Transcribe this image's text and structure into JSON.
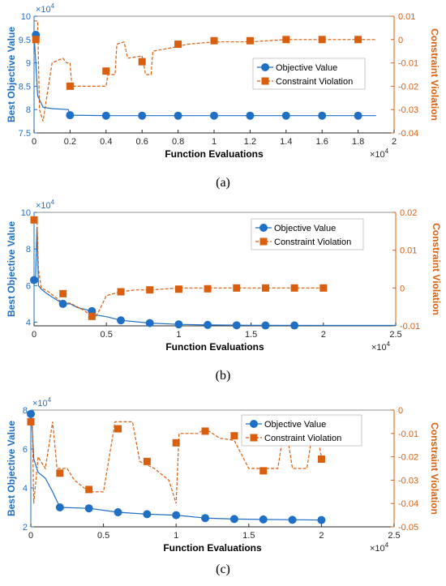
{
  "colors": {
    "objective": "#1f6fc5",
    "constraint": "#d95f0e",
    "axis": "#262626",
    "grid": "#e0e0e0"
  },
  "legend": {
    "objective": "Objective Value",
    "constraint": "Constraint Violation"
  },
  "chart_data": [
    {
      "type": "line",
      "panel_label": "(a)",
      "xlabel": "Function Evaluations",
      "ylabel_left": "Best Objective Value",
      "ylabel_right": "Constraint Violation",
      "x_exponent": "×10^4",
      "y_left_exponent": "×10^4",
      "xlim": [
        0,
        2
      ],
      "xticks": [
        "0",
        "0.2",
        "0.4",
        "0.6",
        "0.8",
        "1",
        "1.2",
        "1.4",
        "1.6",
        "1.8",
        "2"
      ],
      "ylim_left": [
        7.5,
        10
      ],
      "yticks_left": [
        "7.5",
        "8",
        "8.5",
        "9",
        "9.5",
        "10"
      ],
      "ylim_right": [
        -0.04,
        0.01
      ],
      "yticks_right": [
        "-0.04",
        "-0.03",
        "-0.02",
        "-0.01",
        "0",
        "0.01"
      ],
      "objective_line": [
        [
          0,
          9.6
        ],
        [
          0.01,
          9.0
        ],
        [
          0.02,
          8.3
        ],
        [
          0.05,
          8.05
        ],
        [
          0.1,
          8.02
        ],
        [
          0.19,
          8.0
        ],
        [
          0.2,
          7.88
        ],
        [
          0.4,
          7.87
        ],
        [
          1.9,
          7.87
        ]
      ],
      "objective_markers": [
        [
          0.01,
          9.6
        ],
        [
          0.2,
          7.88
        ],
        [
          0.4,
          7.87
        ],
        [
          0.6,
          7.87
        ],
        [
          0.8,
          7.87
        ],
        [
          1.0,
          7.87
        ],
        [
          1.2,
          7.87
        ],
        [
          1.4,
          7.87
        ],
        [
          1.6,
          7.87
        ],
        [
          1.8,
          7.87
        ]
      ],
      "constraint_line": [
        [
          0,
          0.008
        ],
        [
          0.02,
          0.008
        ],
        [
          0.03,
          -0.03
        ],
        [
          0.05,
          -0.035
        ],
        [
          0.07,
          -0.025
        ],
        [
          0.1,
          -0.01
        ],
        [
          0.16,
          -0.008
        ],
        [
          0.18,
          -0.01
        ],
        [
          0.2,
          -0.01
        ],
        [
          0.21,
          -0.02
        ],
        [
          0.4,
          -0.02
        ],
        [
          0.41,
          -0.015
        ],
        [
          0.45,
          -0.015
        ],
        [
          0.46,
          -0.002
        ],
        [
          0.5,
          -0.001
        ],
        [
          0.52,
          -0.008
        ],
        [
          0.6,
          -0.007
        ],
        [
          0.62,
          -0.015
        ],
        [
          0.65,
          -0.015
        ],
        [
          0.66,
          -0.005
        ],
        [
          0.8,
          -0.003
        ],
        [
          0.85,
          -0.002
        ],
        [
          1.0,
          -0.001
        ],
        [
          1.2,
          -0.001
        ],
        [
          1.4,
          0.0
        ],
        [
          1.9,
          0.0
        ]
      ],
      "constraint_markers": [
        [
          0.01,
          0.0
        ],
        [
          0.2,
          -0.02
        ],
        [
          0.4,
          -0.0135
        ],
        [
          0.6,
          -0.0095
        ],
        [
          0.8,
          -0.002
        ],
        [
          1.0,
          -0.0005
        ],
        [
          1.2,
          -0.0005
        ],
        [
          1.4,
          0.0
        ],
        [
          1.6,
          0.0
        ],
        [
          1.8,
          0.0
        ]
      ]
    },
    {
      "type": "line",
      "panel_label": "(b)",
      "xlabel": "Function Evaluations",
      "ylabel_left": "Best Objective Value",
      "ylabel_right": "Constraint Violation",
      "x_exponent": "×10^4",
      "y_left_exponent": "×10^4",
      "xlim": [
        0,
        2.5
      ],
      "xticks": [
        "0",
        "0.5",
        "1",
        "1.5",
        "2",
        "2.5"
      ],
      "ylim_left": [
        3.8,
        10
      ],
      "yticks_left": [
        "4",
        "6",
        "8",
        "10"
      ],
      "ylim_right": [
        -0.01,
        0.02
      ],
      "yticks_right": [
        "-0.01",
        "0",
        "0.01",
        "0.02"
      ],
      "objective_line": [
        [
          0,
          6.3
        ],
        [
          0.01,
          6.3
        ],
        [
          0.02,
          9.2
        ],
        [
          0.03,
          6.0
        ],
        [
          0.05,
          5.8
        ],
        [
          0.1,
          5.5
        ],
        [
          0.2,
          5.0
        ],
        [
          0.25,
          5.0
        ],
        [
          0.3,
          4.8
        ],
        [
          0.4,
          4.6
        ],
        [
          0.42,
          4.4
        ],
        [
          0.5,
          4.3
        ],
        [
          0.6,
          4.1
        ],
        [
          0.8,
          3.95
        ],
        [
          1.0,
          3.88
        ],
        [
          1.2,
          3.85
        ],
        [
          1.5,
          3.83
        ],
        [
          2.0,
          3.82
        ],
        [
          2.5,
          3.82
        ]
      ],
      "objective_markers": [
        [
          0.0,
          6.3
        ],
        [
          0.2,
          5.0
        ],
        [
          0.4,
          4.6
        ],
        [
          0.6,
          4.1
        ],
        [
          0.8,
          3.95
        ],
        [
          1.0,
          3.88
        ],
        [
          1.2,
          3.85
        ],
        [
          1.4,
          3.83
        ],
        [
          1.6,
          3.82
        ],
        [
          1.8,
          3.82
        ]
      ],
      "constraint_line": [
        [
          0,
          0.018
        ],
        [
          0.02,
          0.018
        ],
        [
          0.03,
          0.005
        ],
        [
          0.05,
          0.0
        ],
        [
          0.1,
          -0.001
        ],
        [
          0.2,
          -0.004
        ],
        [
          0.25,
          -0.004
        ],
        [
          0.3,
          -0.005
        ],
        [
          0.35,
          -0.006
        ],
        [
          0.38,
          -0.007
        ],
        [
          0.42,
          -0.008
        ],
        [
          0.45,
          -0.006
        ],
        [
          0.5,
          -0.002
        ],
        [
          0.6,
          -0.001
        ],
        [
          0.7,
          -0.0005
        ],
        [
          0.8,
          -0.0005
        ],
        [
          1.0,
          0.0
        ],
        [
          1.2,
          0.0
        ],
        [
          1.5,
          0.0
        ],
        [
          2.0,
          0.0
        ]
      ],
      "constraint_markers": [
        [
          0.0,
          0.018
        ],
        [
          0.2,
          -0.0015
        ],
        [
          0.4,
          -0.0075
        ],
        [
          0.6,
          -0.001
        ],
        [
          0.8,
          -0.0005
        ],
        [
          1.0,
          -0.0003
        ],
        [
          1.2,
          -0.0002
        ],
        [
          1.4,
          0.0
        ],
        [
          1.6,
          0.0
        ],
        [
          1.8,
          0.0
        ],
        [
          2.0,
          0.0
        ]
      ]
    },
    {
      "type": "line",
      "panel_label": "(c)",
      "xlabel": "Function Evaluations",
      "ylabel_left": "Best Objective Value",
      "ylabel_right": "Constraint Violation",
      "x_exponent": "×10^4",
      "y_left_exponent": "×10^4",
      "xlim": [
        0,
        2.5
      ],
      "xticks": [
        "0",
        "0.5",
        "1",
        "1.5",
        "2",
        "2.5"
      ],
      "ylim_left": [
        2,
        8
      ],
      "yticks_left": [
        "2",
        "4",
        "6",
        "8"
      ],
      "ylim_right": [
        -0.05,
        0.0
      ],
      "yticks_right": [
        "-0.05",
        "-0.04",
        "-0.03",
        "-0.02",
        "-0.01",
        "0"
      ],
      "objective_line": [
        [
          0,
          7.8
        ],
        [
          0.01,
          7.0
        ],
        [
          0.02,
          5.5
        ],
        [
          0.05,
          4.8
        ],
        [
          0.1,
          4.5
        ],
        [
          0.15,
          3.8
        ],
        [
          0.2,
          3.0
        ],
        [
          0.4,
          2.95
        ],
        [
          0.6,
          2.75
        ],
        [
          0.8,
          2.65
        ],
        [
          1.0,
          2.6
        ],
        [
          1.2,
          2.45
        ],
        [
          1.4,
          2.4
        ],
        [
          1.6,
          2.38
        ],
        [
          2.0,
          2.35
        ]
      ],
      "objective_markers": [
        [
          0.0,
          7.8
        ],
        [
          0.2,
          3.0
        ],
        [
          0.4,
          2.95
        ],
        [
          0.6,
          2.75
        ],
        [
          0.8,
          2.65
        ],
        [
          1.0,
          2.6
        ],
        [
          1.2,
          2.45
        ],
        [
          1.4,
          2.4
        ],
        [
          1.6,
          2.38
        ],
        [
          1.8,
          2.36
        ],
        [
          2.0,
          2.35
        ]
      ],
      "constraint_line": [
        [
          0,
          -0.005
        ],
        [
          0.01,
          -0.005
        ],
        [
          0.02,
          -0.04
        ],
        [
          0.05,
          -0.02
        ],
        [
          0.1,
          -0.025
        ],
        [
          0.15,
          -0.005
        ],
        [
          0.18,
          -0.025
        ],
        [
          0.25,
          -0.025
        ],
        [
          0.3,
          -0.03
        ],
        [
          0.4,
          -0.035
        ],
        [
          0.5,
          -0.035
        ],
        [
          0.58,
          -0.005
        ],
        [
          0.7,
          -0.005
        ],
        [
          0.75,
          -0.022
        ],
        [
          0.85,
          -0.025
        ],
        [
          0.95,
          -0.03
        ],
        [
          1.0,
          -0.04
        ],
        [
          1.02,
          -0.01
        ],
        [
          1.15,
          -0.01
        ],
        [
          1.2,
          -0.008
        ],
        [
          1.3,
          -0.012
        ],
        [
          1.4,
          -0.013
        ],
        [
          1.5,
          -0.025
        ],
        [
          1.7,
          -0.025
        ],
        [
          1.75,
          -0.005
        ],
        [
          1.8,
          -0.025
        ],
        [
          1.9,
          -0.025
        ],
        [
          1.95,
          -0.005
        ],
        [
          2.0,
          -0.02
        ]
      ],
      "constraint_markers": [
        [
          0.0,
          -0.005
        ],
        [
          0.2,
          -0.027
        ],
        [
          0.4,
          -0.034
        ],
        [
          0.6,
          -0.008
        ],
        [
          0.8,
          -0.022
        ],
        [
          1.0,
          -0.014
        ],
        [
          1.2,
          -0.009
        ],
        [
          1.4,
          -0.011
        ],
        [
          1.6,
          -0.026
        ],
        [
          2.0,
          -0.021
        ]
      ]
    }
  ]
}
